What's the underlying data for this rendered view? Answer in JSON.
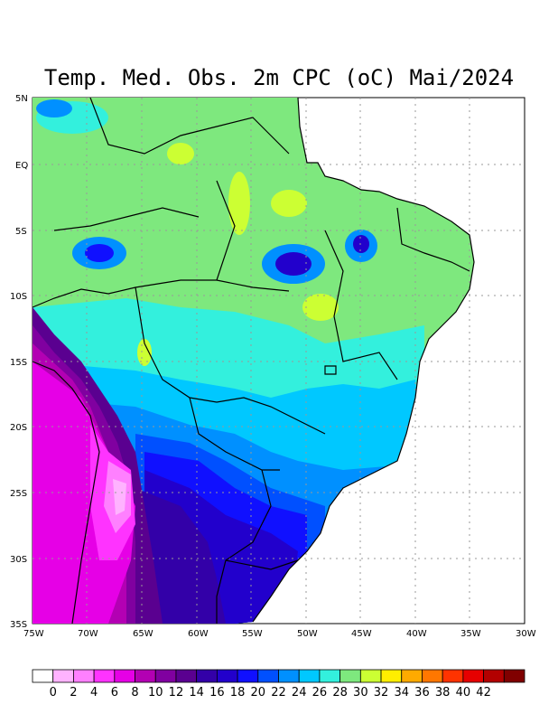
{
  "title": "Temp. Med. Obs. 2m CPC (oC) Mai/2024",
  "map": {
    "lat_labels": [
      "5N",
      "EQ",
      "5S",
      "10S",
      "15S",
      "20S",
      "25S",
      "30S",
      "35S"
    ],
    "lon_labels": [
      "75W",
      "70W",
      "65W",
      "60W",
      "55W",
      "50W",
      "45W",
      "40W",
      "35W",
      "30W"
    ],
    "lon_range": [
      -75,
      -30
    ],
    "lat_range": [
      -35,
      5
    ],
    "grid": true
  },
  "colorbar": {
    "tick_labels": [
      "0",
      "2",
      "4",
      "6",
      "8",
      "10",
      "12",
      "14",
      "16",
      "18",
      "20",
      "22",
      "24",
      "26",
      "28",
      "30",
      "32",
      "34",
      "36",
      "38",
      "40",
      "42"
    ],
    "colors": [
      "#ffffff",
      "#ffb3ff",
      "#ff80ff",
      "#ff33ff",
      "#e600e6",
      "#b300b3",
      "#8000a0",
      "#5a0090",
      "#3300a8",
      "#2200cc",
      "#1010ff",
      "#0050ff",
      "#0090ff",
      "#00c8ff",
      "#33f0dd",
      "#7ee87e",
      "#ccff33",
      "#ffee00",
      "#ffaa00",
      "#ff7700",
      "#ff3300",
      "#e60000",
      "#b30000",
      "#800000"
    ]
  }
}
